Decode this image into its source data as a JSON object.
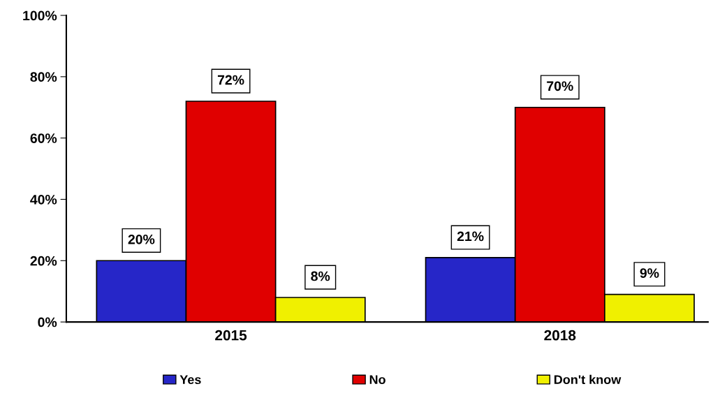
{
  "chart_data": {
    "type": "bar",
    "categories": [
      "2015",
      "2018"
    ],
    "series": [
      {
        "name": "Yes",
        "color": "#2626c8",
        "values": [
          20,
          21
        ],
        "value_labels": [
          "20%",
          "21%"
        ]
      },
      {
        "name": "No",
        "color": "#e00000",
        "values": [
          72,
          70
        ],
        "value_labels": [
          "72%",
          "70%"
        ]
      },
      {
        "name": "Don't know",
        "color": "#f0f000",
        "values": [
          8,
          9
        ],
        "value_labels": [
          "8%",
          "9%"
        ]
      }
    ],
    "ylim": [
      0,
      100
    ],
    "yticks": [
      {
        "value": 0,
        "label": "0%"
      },
      {
        "value": 20,
        "label": "20%"
      },
      {
        "value": 40,
        "label": "40%"
      },
      {
        "value": 60,
        "label": "60%"
      },
      {
        "value": 80,
        "label": "80%"
      },
      {
        "value": 100,
        "label": "100%"
      }
    ],
    "grid": false,
    "legend": "bottom"
  }
}
